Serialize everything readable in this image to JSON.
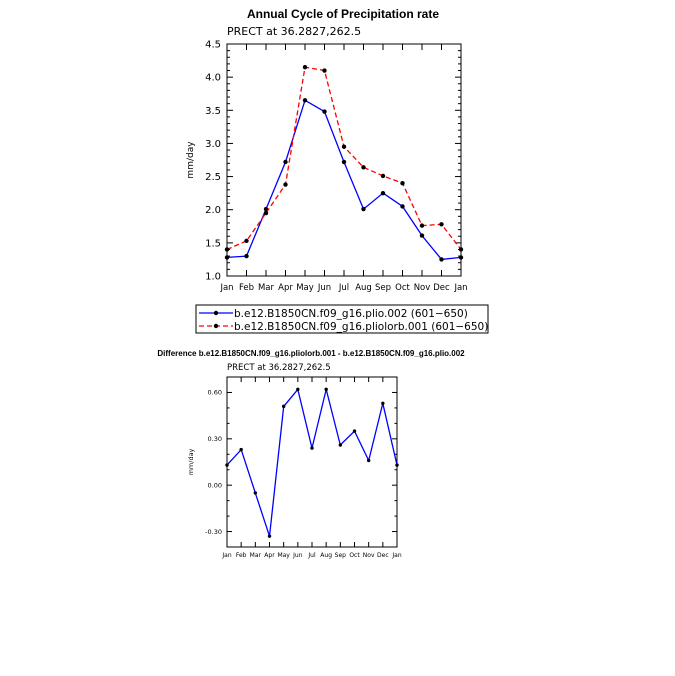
{
  "chart_data": [
    {
      "type": "line",
      "title": "Annual Cycle of Precipitation rate",
      "subtitle": "PRECT at 36.2827,262.5",
      "xlabel": "",
      "ylabel": "mm/day",
      "categories": [
        "Jan",
        "Feb",
        "Mar",
        "Apr",
        "May",
        "Jun",
        "Jul",
        "Aug",
        "Sep",
        "Oct",
        "Nov",
        "Dec",
        "Jan"
      ],
      "ylim": [
        1.0,
        4.5
      ],
      "yticks": [
        "1.0",
        "1.5",
        "2.0",
        "2.5",
        "3.0",
        "3.5",
        "4.0",
        "4.5"
      ],
      "series": [
        {
          "name": "b.e12.B1850CN.f09_g16.plio.002 (601−650)",
          "color": "#0000ff",
          "dash": "solid",
          "values": [
            1.28,
            1.3,
            2.01,
            2.72,
            3.65,
            3.48,
            2.72,
            2.01,
            2.25,
            2.05,
            1.61,
            1.25,
            1.28
          ]
        },
        {
          "name": "b.e12.B1850CN.f09_g16.pliolorb.001 (601−650)",
          "color": "#ff0000",
          "dash": "dashed",
          "values": [
            1.4,
            1.53,
            1.95,
            2.38,
            4.15,
            4.1,
            2.95,
            2.64,
            2.51,
            2.4,
            1.76,
            1.78,
            1.4
          ]
        }
      ]
    },
    {
      "type": "line",
      "title": "Difference b.e12.B1850CN.f09_g16.pliolorb.001 - b.e12.B1850CN.f09_g16.plio.002",
      "subtitle": "PRECT at 36.2827,262.5",
      "xlabel": "",
      "ylabel": "mm/day",
      "categories": [
        "Jan",
        "Feb",
        "Mar",
        "Apr",
        "May",
        "Jun",
        "Jul",
        "Aug",
        "Sep",
        "Oct",
        "Nov",
        "Dec",
        "Jan"
      ],
      "ylim": [
        -0.4,
        0.7
      ],
      "yticks": [
        "-0.30",
        "0.00",
        "0.30",
        "0.60"
      ],
      "series": [
        {
          "color": "#0000ff",
          "dash": "solid",
          "values": [
            0.13,
            0.23,
            -0.05,
            -0.33,
            0.51,
            0.62,
            0.24,
            0.62,
            0.26,
            0.35,
            0.16,
            0.53,
            0.13
          ]
        }
      ]
    }
  ]
}
